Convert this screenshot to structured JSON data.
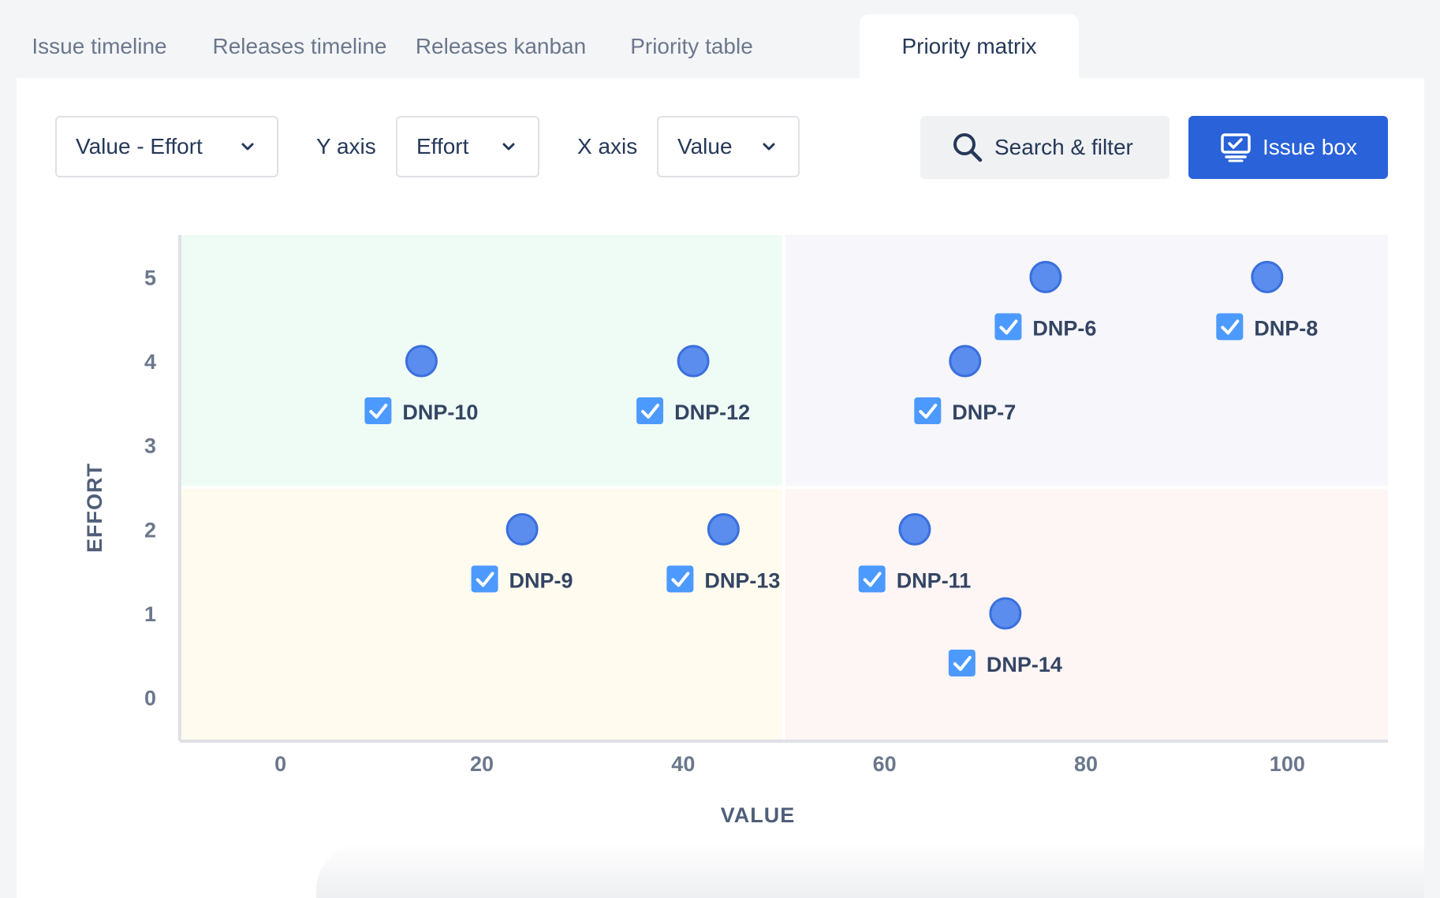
{
  "tabs": [
    {
      "label": "Issue timeline"
    },
    {
      "label": "Releases timeline"
    },
    {
      "label": "Releases kanban"
    },
    {
      "label": "Priority table"
    },
    {
      "label": "Priority matrix",
      "active": true
    }
  ],
  "toolbar": {
    "preset_value": "Value - Effort",
    "y_axis_label": "Y axis",
    "y_axis_value": "Effort",
    "x_axis_label": "X axis",
    "x_axis_value": "Value",
    "search_label": "Search & filter",
    "issue_box_label": "Issue box"
  },
  "colors": {
    "accent": "#2962d9",
    "point": "#5b8def",
    "checkbox": "#4c9aff",
    "quadrant_top_left": "#effcf6",
    "quadrant_top_right": "#f6f6fb",
    "quadrant_bottom_left": "#fffbef",
    "quadrant_bottom_right": "#fef5f5"
  },
  "chart_data": {
    "type": "scatter",
    "xlabel": "VALUE",
    "ylabel": "EFFORT",
    "xlim": [
      -10,
      110
    ],
    "ylim": [
      -0.5,
      5.5
    ],
    "x_ticks": [
      0,
      20,
      40,
      60,
      80,
      100
    ],
    "y_ticks": [
      0,
      1,
      2,
      3,
      4,
      5
    ],
    "quadrant_split": {
      "x": 50,
      "y": 2.5
    },
    "grid": false,
    "points": [
      {
        "label": "DNP-6",
        "x": 76,
        "y": 5
      },
      {
        "label": "DNP-8",
        "x": 98,
        "y": 5
      },
      {
        "label": "DNP-10",
        "x": 14,
        "y": 4
      },
      {
        "label": "DNP-12",
        "x": 41,
        "y": 4
      },
      {
        "label": "DNP-7",
        "x": 68,
        "y": 4
      },
      {
        "label": "DNP-9",
        "x": 24,
        "y": 2
      },
      {
        "label": "DNP-13",
        "x": 44,
        "y": 2
      },
      {
        "label": "DNP-11",
        "x": 63,
        "y": 2
      },
      {
        "label": "DNP-14",
        "x": 72,
        "y": 1
      }
    ]
  }
}
